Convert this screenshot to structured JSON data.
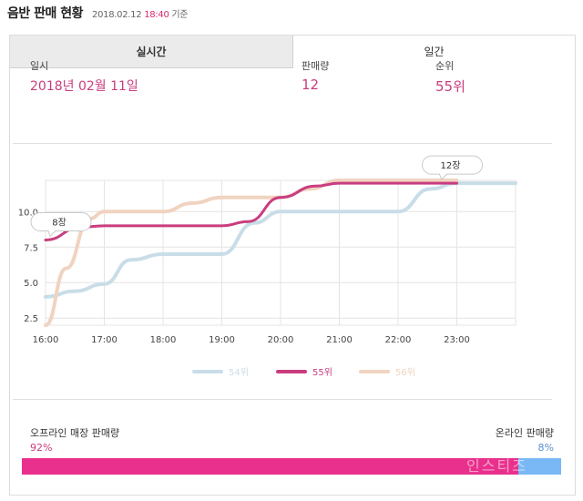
{
  "header": {
    "title": "음반 판매 현황",
    "date": "2018.02.12",
    "time": "18:40",
    "suffix": "기준"
  },
  "tabs": [
    {
      "label": "실시간",
      "active": false
    },
    {
      "label": "일간",
      "active": true
    }
  ],
  "stats": {
    "date_label": "일시",
    "date_value": "2018년 02월 11일",
    "sales_label": "판매량",
    "sales_value": "12",
    "rank_label": "순위",
    "rank_value": "55위"
  },
  "chart_data": {
    "type": "line",
    "x": [
      "16:00",
      "17:00",
      "18:00",
      "19:00",
      "20:00",
      "21:00",
      "22:00",
      "23:00"
    ],
    "yticks": [
      "2.5",
      "5.0",
      "7.5",
      "10.0"
    ],
    "ylim": [
      2,
      12.2
    ],
    "series": [
      {
        "name": "54위",
        "color": "#c8dde8",
        "points": [
          [
            16.0,
            4.0
          ],
          [
            16.5,
            4.4
          ],
          [
            17.0,
            4.9
          ],
          [
            17.45,
            6.6
          ],
          [
            18.0,
            7.0
          ],
          [
            19.0,
            7.0
          ],
          [
            19.55,
            9.2
          ],
          [
            20.0,
            10.0
          ],
          [
            22.0,
            10.0
          ],
          [
            22.55,
            11.6
          ],
          [
            23.0,
            12.0
          ],
          [
            24.0,
            12.0
          ]
        ]
      },
      {
        "name": "55위",
        "color": "#c93d7f",
        "points": [
          [
            16.0,
            8.0
          ],
          [
            16.6,
            8.9
          ],
          [
            17.0,
            9.0
          ],
          [
            19.0,
            9.0
          ],
          [
            19.45,
            9.3
          ],
          [
            20.0,
            11.0
          ],
          [
            20.6,
            11.8
          ],
          [
            21.0,
            12.0
          ],
          [
            23.0,
            12.0
          ]
        ]
      },
      {
        "name": "56위",
        "color": "#f0d3c0",
        "points": [
          [
            16.0,
            2.0
          ],
          [
            16.35,
            6.0
          ],
          [
            16.75,
            9.5
          ],
          [
            17.0,
            10.0
          ],
          [
            18.0,
            10.0
          ],
          [
            18.5,
            10.6
          ],
          [
            19.0,
            11.0
          ],
          [
            20.0,
            11.0
          ],
          [
            20.5,
            11.6
          ],
          [
            21.0,
            12.2
          ],
          [
            23.0,
            12.2
          ]
        ]
      }
    ],
    "annotations": [
      {
        "label": "8장",
        "x": 16.0,
        "y": 8.0
      },
      {
        "label": "12장",
        "x": 23.0,
        "y": 12.0
      }
    ],
    "legend_position": "bottom",
    "grid": true
  },
  "sales_share": {
    "offline_label": "오프라인 매장 판매량",
    "offline_pct": "92%",
    "offline_value": 92,
    "online_label": "온라인 판매량",
    "online_pct": "8%",
    "online_value": 8,
    "offline_color": "#e8308c",
    "online_color": "#7ab8f5"
  },
  "watermark": "인스티즈"
}
